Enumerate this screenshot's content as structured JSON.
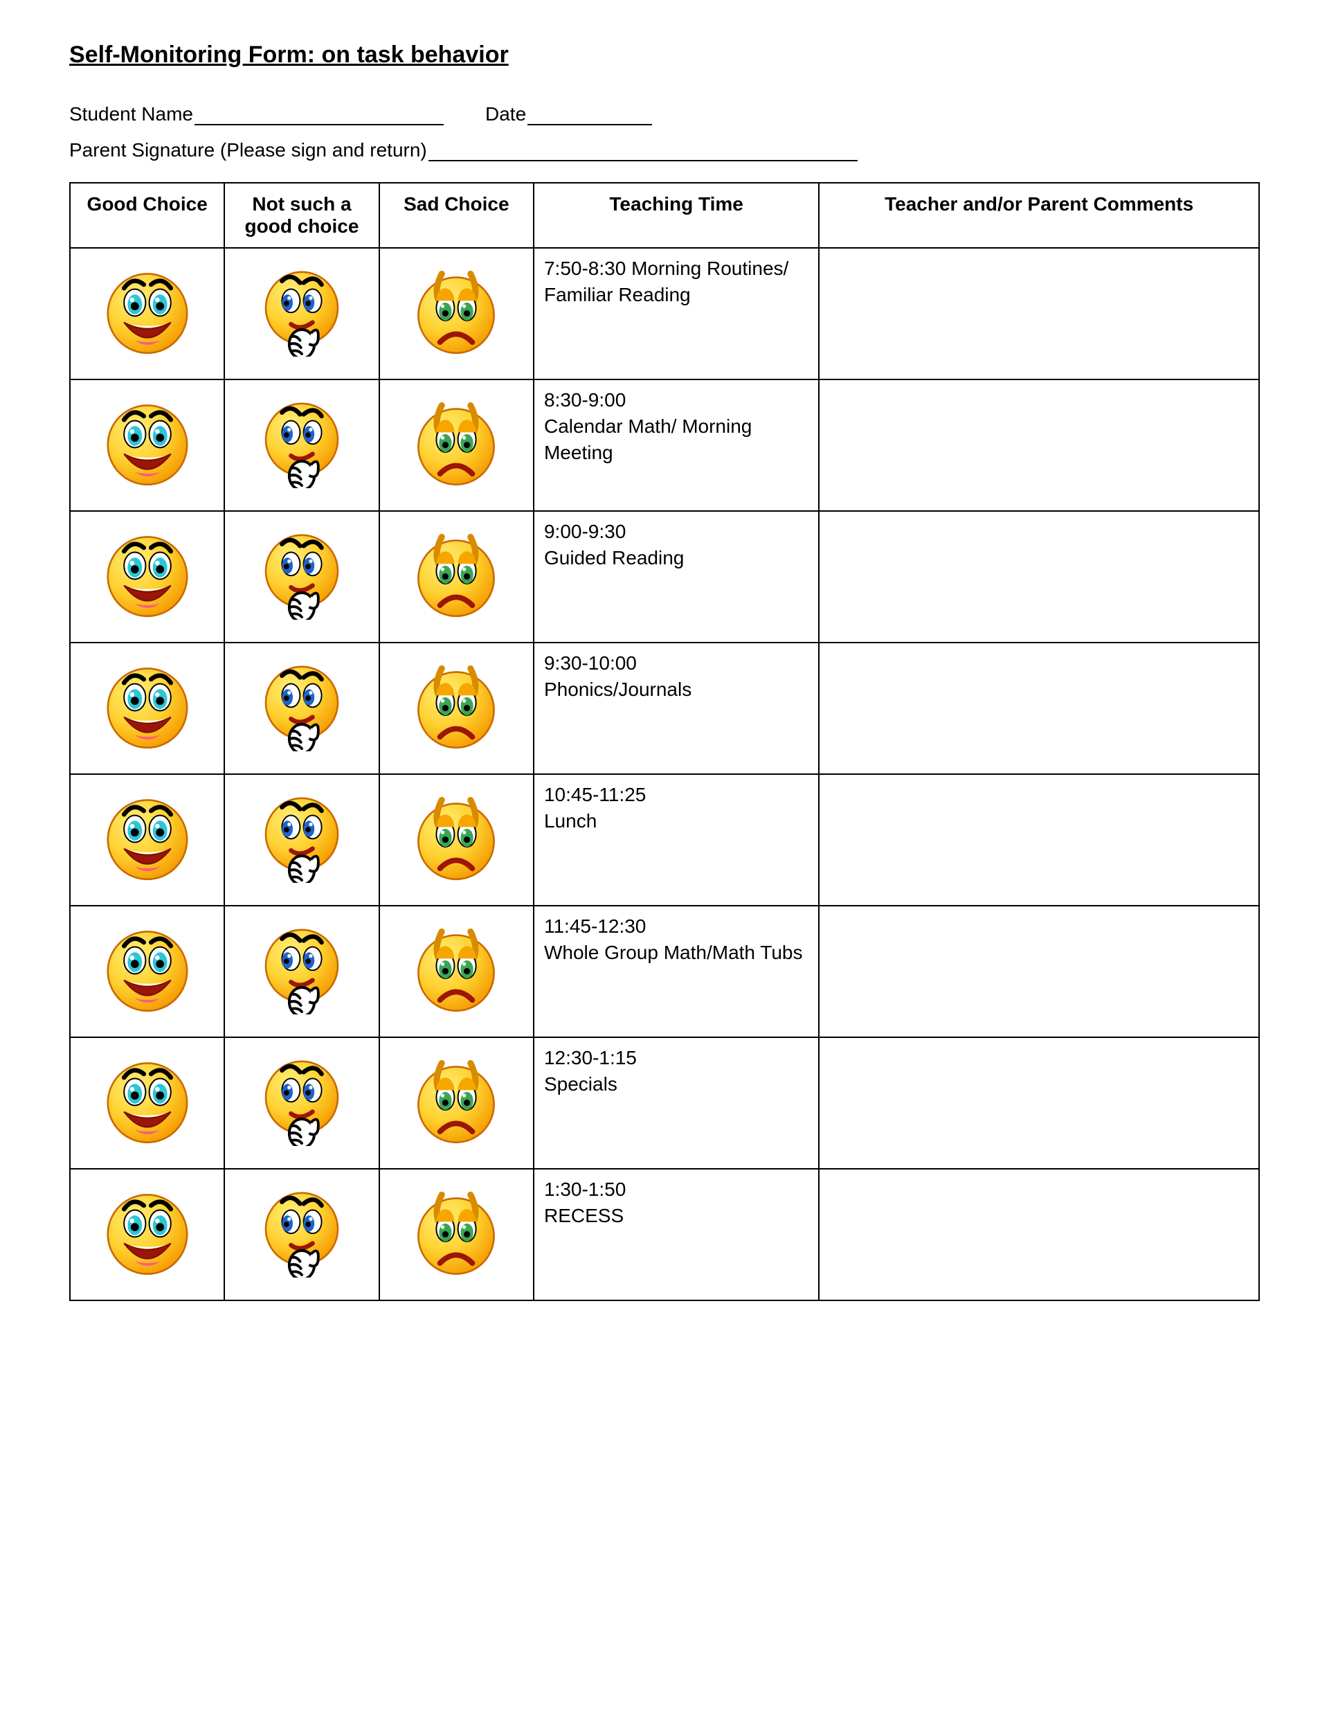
{
  "title": "Self-Monitoring Form: on task behavior",
  "fields": {
    "student_name_label": "Student Name",
    "date_label": "Date",
    "signature_label": "Parent Signature (Please sign and return)"
  },
  "columns": {
    "good": "Good Choice",
    "notgood": "Not such a good choice",
    "sad": "Sad Choice",
    "time": "Teaching Time",
    "comments": "Teacher and/or Parent Comments"
  },
  "rows": [
    {
      "time": "7:50-8:30 Morning Routines/\nFamiliar Reading"
    },
    {
      "time": "8:30-9:00\nCalendar Math/ Morning Meeting"
    },
    {
      "time": "9:00-9:30\nGuided Reading"
    },
    {
      "time": "9:30-10:00\nPhonics/Journals"
    },
    {
      "time": "10:45-11:25\nLunch"
    },
    {
      "time": "11:45-12:30\nWhole Group Math/Math Tubs"
    },
    {
      "time": "12:30-1:15\nSpecials"
    },
    {
      "time": "1:30-1:50\nRECESS"
    }
  ],
  "style": {
    "page_bg": "#ffffff",
    "text_color": "#000000",
    "border_color": "#000000",
    "font_family": "Comic Sans MS",
    "title_fontsize": 34,
    "body_fontsize": 28,
    "table_row_height": 190,
    "face_diameter": 130,
    "colors": {
      "face_fill_light": "#ffe34d",
      "face_fill_dark": "#f7a600",
      "face_stroke": "#c96a00",
      "eye_blue": "#1e63c8",
      "eye_teal": "#2cc6d6",
      "eye_green": "#3aa655",
      "eye_white": "#ffffff",
      "mouth_red": "#c21807",
      "tongue_pink": "#ff5a7a",
      "brow_black": "#000000",
      "hand_white": "#ffffff"
    }
  }
}
